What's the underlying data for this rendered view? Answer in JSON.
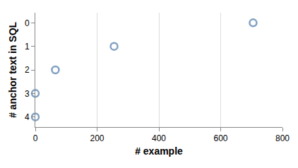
{
  "chart_data": {
    "type": "scatter",
    "orientation": "horizontal",
    "x_label": "# example",
    "y_label": "# anchor text in SQL",
    "categories": [
      "0",
      "1",
      "2",
      "3",
      "4"
    ],
    "values": [
      705,
      255,
      65,
      0,
      0
    ],
    "color": "#4c78a8",
    "marker": "circle-open",
    "xlim": [
      0,
      800
    ],
    "xticks": [
      0,
      200,
      400,
      600,
      800
    ],
    "grid": true
  }
}
